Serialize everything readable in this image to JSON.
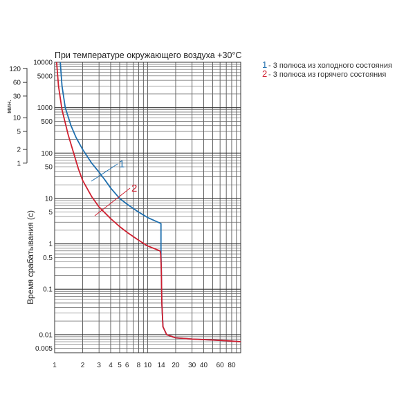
{
  "chart_data": {
    "type": "line",
    "title": "При температуре окружающего воздуха +30°C",
    "ylabel": "Время срабатывания (с)",
    "xscale": "log",
    "yscale": "log",
    "xlim": [
      1,
      100
    ],
    "ylim": [
      0.004,
      10000
    ],
    "grid": true,
    "legend_position": "top-right",
    "x_ticks": [
      {
        "v": 1,
        "label": "1"
      },
      {
        "v": 2,
        "label": "2"
      },
      {
        "v": 3,
        "label": "3"
      },
      {
        "v": 4,
        "label": "4"
      },
      {
        "v": 5,
        "label": "5"
      },
      {
        "v": 6,
        "label": "6"
      },
      {
        "v": 8,
        "label": "8"
      },
      {
        "v": 10,
        "label": "10"
      },
      {
        "v": 14,
        "label": "14"
      },
      {
        "v": 20,
        "label": "20"
      },
      {
        "v": 30,
        "label": "30"
      },
      {
        "v": 40,
        "label": "40"
      },
      {
        "v": 60,
        "label": "60"
      },
      {
        "v": 80,
        "label": "80"
      }
    ],
    "y_ticks": [
      {
        "v": 10000,
        "label": "10000"
      },
      {
        "v": 5000,
        "label": "5000"
      },
      {
        "v": 1000,
        "label": "1000"
      },
      {
        "v": 500,
        "label": "500"
      },
      {
        "v": 100,
        "label": "100"
      },
      {
        "v": 50,
        "label": "50"
      },
      {
        "v": 10,
        "label": "10"
      },
      {
        "v": 5,
        "label": "5"
      },
      {
        "v": 1,
        "label": "1"
      },
      {
        "v": 0.5,
        "label": "0.5"
      },
      {
        "v": 0.1,
        "label": "0.1"
      },
      {
        "v": 0.01,
        "label": "0.01"
      },
      {
        "v": 0.005,
        "label": "0.005"
      }
    ],
    "minutes_axis": {
      "unit": "мин.",
      "ticks": [
        {
          "v": 7200,
          "label": "120"
        },
        {
          "v": 3600,
          "label": "60"
        },
        {
          "v": 1800,
          "label": "30"
        },
        {
          "v": 600,
          "label": "10"
        },
        {
          "v": 300,
          "label": "5"
        },
        {
          "v": 120,
          "label": "2"
        },
        {
          "v": 60,
          "label": "1"
        }
      ]
    },
    "series": [
      {
        "name": "3 полюса из холодного состояния",
        "legend_number": "1",
        "curve_label": "1",
        "color": "#1f6fae",
        "points": [
          [
            1.15,
            10000
          ],
          [
            1.2,
            3000
          ],
          [
            1.3,
            1000
          ],
          [
            1.5,
            400
          ],
          [
            1.7,
            220
          ],
          [
            2,
            120
          ],
          [
            2.5,
            60
          ],
          [
            3,
            38
          ],
          [
            3.5,
            25
          ],
          [
            4,
            17
          ],
          [
            5,
            10
          ],
          [
            6,
            7.5
          ],
          [
            8,
            5
          ],
          [
            10,
            3.8
          ],
          [
            13.9,
            2.8
          ],
          [
            13.9,
            0.6
          ],
          [
            14,
            0.3
          ],
          [
            14.2,
            0.05
          ],
          [
            14.6,
            0.015
          ],
          [
            16,
            0.01
          ],
          [
            20,
            0.0085
          ],
          [
            30,
            0.008
          ],
          [
            60,
            0.0075
          ],
          [
            100,
            0.007
          ]
        ]
      },
      {
        "name": "3 полюса из горячего состояния",
        "legend_number": "2",
        "curve_label": "2",
        "color": "#cf2030",
        "points": [
          [
            1.05,
            10000
          ],
          [
            1.1,
            3000
          ],
          [
            1.2,
            900
          ],
          [
            1.4,
            250
          ],
          [
            1.6,
            100
          ],
          [
            1.8,
            45
          ],
          [
            2,
            25
          ],
          [
            2.5,
            11
          ],
          [
            3,
            6.5
          ],
          [
            4,
            3.6
          ],
          [
            5,
            2.4
          ],
          [
            6,
            1.8
          ],
          [
            8,
            1.2
          ],
          [
            10,
            0.9
          ],
          [
            13.6,
            0.7
          ],
          [
            13.8,
            0.6
          ],
          [
            14,
            0.3
          ],
          [
            14.2,
            0.05
          ],
          [
            14.6,
            0.015
          ],
          [
            16,
            0.01
          ],
          [
            20,
            0.0085
          ],
          [
            30,
            0.008
          ],
          [
            60,
            0.0075
          ],
          [
            100,
            0.007
          ]
        ]
      }
    ]
  }
}
